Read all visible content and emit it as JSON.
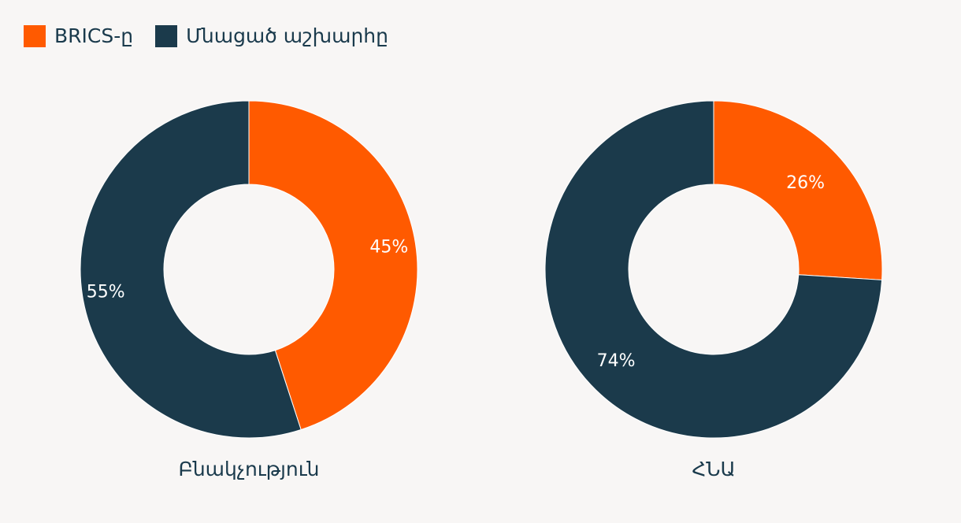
{
  "legend": {
    "items": [
      {
        "label": "BRICS-ը",
        "color": "#ff5a00"
      },
      {
        "label": "Մնացած աշխարհը",
        "color": "#1b3a4b"
      }
    ],
    "placement": "top-left"
  },
  "chart_data": [
    {
      "type": "pie",
      "donut": true,
      "title": "Բնակչություն",
      "categories": [
        "BRICS-ը",
        "Մնացած աշխարհը"
      ],
      "values": [
        45,
        55
      ],
      "value_labels": [
        "45%",
        "55%"
      ],
      "colors": [
        "#ff5a00",
        "#1b3a4b"
      ]
    },
    {
      "type": "pie",
      "donut": true,
      "title": "ՀՆԱ",
      "categories": [
        "BRICS-ը",
        "Մնացած աշխարհը"
      ],
      "values": [
        26,
        74
      ],
      "value_labels": [
        "26%",
        "74%"
      ],
      "colors": [
        "#ff5a00",
        "#1b3a4b"
      ]
    }
  ]
}
